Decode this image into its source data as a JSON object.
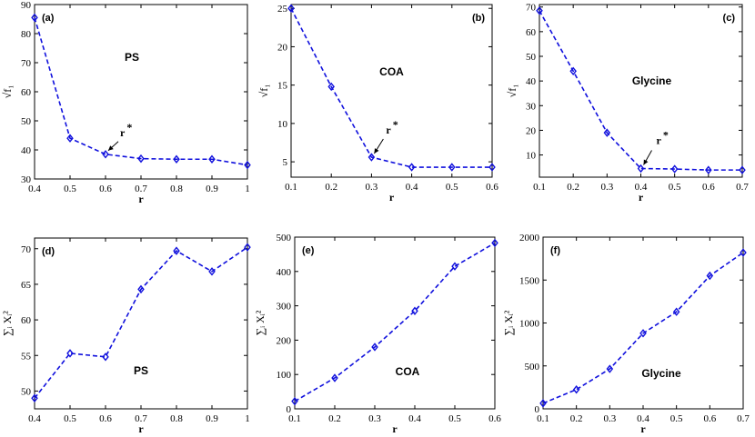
{
  "colors": {
    "series": "#1010dd",
    "axis": "#000000"
  },
  "chart_data": [
    {
      "id": "a",
      "type": "line",
      "title": "",
      "panel_label": "(a)",
      "dataset": "PS",
      "xlabel": "r",
      "ylabel": "√f₁",
      "x": [
        0.4,
        0.5,
        0.6,
        0.7,
        0.8,
        0.9,
        1.0
      ],
      "series": [
        {
          "name": "PS",
          "values": [
            85.5,
            44.0,
            38.5,
            37.0,
            36.8,
            36.8,
            34.8
          ]
        }
      ],
      "xlim": [
        0.4,
        1.0
      ],
      "ylim": [
        30,
        90
      ],
      "xticks": [
        0.4,
        0.5,
        0.6,
        0.7,
        0.8,
        0.9,
        1
      ],
      "yticks": [
        30,
        40,
        50,
        60,
        70,
        80,
        90
      ],
      "xtick_labels": [
        "0.4",
        "0.5",
        "0.6",
        "0.7",
        "0.8",
        "0.9",
        "1"
      ],
      "ytick_labels": [
        "30",
        "40",
        "50",
        "60",
        "70",
        "80",
        "90"
      ],
      "annotation": {
        "text": "r",
        "superscript": "*",
        "x": 0.6,
        "y": 38.5
      }
    },
    {
      "id": "b",
      "type": "line",
      "title": "",
      "panel_label": "(b)",
      "dataset": "COA",
      "xlabel": "r",
      "ylabel": "√f₁",
      "x": [
        0.1,
        0.2,
        0.3,
        0.4,
        0.5,
        0.6
      ],
      "series": [
        {
          "name": "COA",
          "values": [
            25.0,
            14.8,
            5.6,
            4.3,
            4.3,
            4.3
          ]
        }
      ],
      "xlim": [
        0.1,
        0.6
      ],
      "ylim": [
        3,
        25.5
      ],
      "xticks": [
        0.1,
        0.2,
        0.3,
        0.4,
        0.5,
        0.6
      ],
      "yticks": [
        5,
        10,
        15,
        20,
        25
      ],
      "xtick_labels": [
        "0.1",
        "0.2",
        "0.3",
        "0.4",
        "0.5",
        "0.6"
      ],
      "ytick_labels": [
        "5",
        "10",
        "15",
        "20",
        "25"
      ],
      "annotation": {
        "text": "r",
        "superscript": "*",
        "x": 0.3,
        "y": 5.6
      }
    },
    {
      "id": "c",
      "type": "line",
      "title": "",
      "panel_label": "(c)",
      "dataset": "Glycine",
      "xlabel": "r",
      "ylabel": "√f₁",
      "x": [
        0.1,
        0.2,
        0.3,
        0.4,
        0.5,
        0.6,
        0.7
      ],
      "series": [
        {
          "name": "Glycine",
          "values": [
            68.5,
            44.0,
            19.0,
            4.5,
            4.3,
            3.9,
            3.9
          ]
        }
      ],
      "xlim": [
        0.1,
        0.7
      ],
      "ylim": [
        1,
        71
      ],
      "xticks": [
        0.1,
        0.2,
        0.3,
        0.4,
        0.5,
        0.6,
        0.7
      ],
      "yticks": [
        10,
        20,
        30,
        40,
        50,
        60,
        70
      ],
      "xtick_labels": [
        "0.1",
        "0.2",
        "0.3",
        "0.4",
        "0.5",
        "0.6",
        "0.7"
      ],
      "ytick_labels": [
        "10",
        "20",
        "30",
        "40",
        "50",
        "60",
        "70"
      ],
      "annotation": {
        "text": "r",
        "superscript": "*",
        "x": 0.4,
        "y": 4.5
      }
    },
    {
      "id": "d",
      "type": "line",
      "title": "",
      "panel_label": "(d)",
      "dataset": "PS",
      "xlabel": "r",
      "ylabel": "∑ᵢ Xᵢ²",
      "x": [
        0.4,
        0.5,
        0.6,
        0.7,
        0.8,
        0.9,
        1.0
      ],
      "series": [
        {
          "name": "PS",
          "values": [
            49.0,
            55.3,
            54.8,
            64.3,
            69.7,
            66.8,
            70.2
          ]
        }
      ],
      "xlim": [
        0.4,
        1.0
      ],
      "ylim": [
        47.5,
        71.5
      ],
      "xticks": [
        0.4,
        0.5,
        0.6,
        0.7,
        0.8,
        0.9,
        1
      ],
      "yticks": [
        50,
        55,
        60,
        65,
        70
      ],
      "xtick_labels": [
        "0.4",
        "0.5",
        "0.6",
        "0.7",
        "0.8",
        "0.9",
        "1"
      ],
      "ytick_labels": [
        "50",
        "55",
        "60",
        "65",
        "70"
      ]
    },
    {
      "id": "e",
      "type": "line",
      "title": "",
      "panel_label": "(e)",
      "dataset": "COA",
      "xlabel": "r",
      "ylabel": "∑ᵢ Xᵢ²",
      "x": [
        0.1,
        0.2,
        0.3,
        0.4,
        0.5,
        0.6
      ],
      "series": [
        {
          "name": "COA",
          "values": [
            22,
            90,
            180,
            285,
            415,
            483
          ]
        }
      ],
      "xlim": [
        0.1,
        0.6
      ],
      "ylim": [
        0,
        500
      ],
      "xticks": [
        0.1,
        0.2,
        0.3,
        0.4,
        0.5,
        0.6
      ],
      "yticks": [
        0,
        100,
        200,
        300,
        400,
        500
      ],
      "xtick_labels": [
        "0.1",
        "0.2",
        "0.3",
        "0.4",
        "0.5",
        "0.6"
      ],
      "ytick_labels": [
        "0",
        "100",
        "200",
        "300",
        "400",
        "500"
      ]
    },
    {
      "id": "f",
      "type": "line",
      "title": "",
      "panel_label": "(f)",
      "dataset": "Glycine",
      "xlabel": "r",
      "ylabel": "∑ᵢ Xᵢ²",
      "x": [
        0.1,
        0.2,
        0.3,
        0.4,
        0.5,
        0.6,
        0.7
      ],
      "series": [
        {
          "name": "Glycine",
          "values": [
            65,
            225,
            465,
            880,
            1130,
            1550,
            1820
          ]
        }
      ],
      "xlim": [
        0.1,
        0.7
      ],
      "ylim": [
        0,
        2000
      ],
      "xticks": [
        0.1,
        0.2,
        0.3,
        0.4,
        0.5,
        0.6,
        0.7
      ],
      "yticks": [
        0,
        500,
        1000,
        1500,
        2000
      ],
      "xtick_labels": [
        "0.1",
        "0.2",
        "0.3",
        "0.4",
        "0.5",
        "0.6",
        "0.7"
      ],
      "ytick_labels": [
        "0",
        "500",
        "1000",
        "1500",
        "2000"
      ]
    }
  ]
}
